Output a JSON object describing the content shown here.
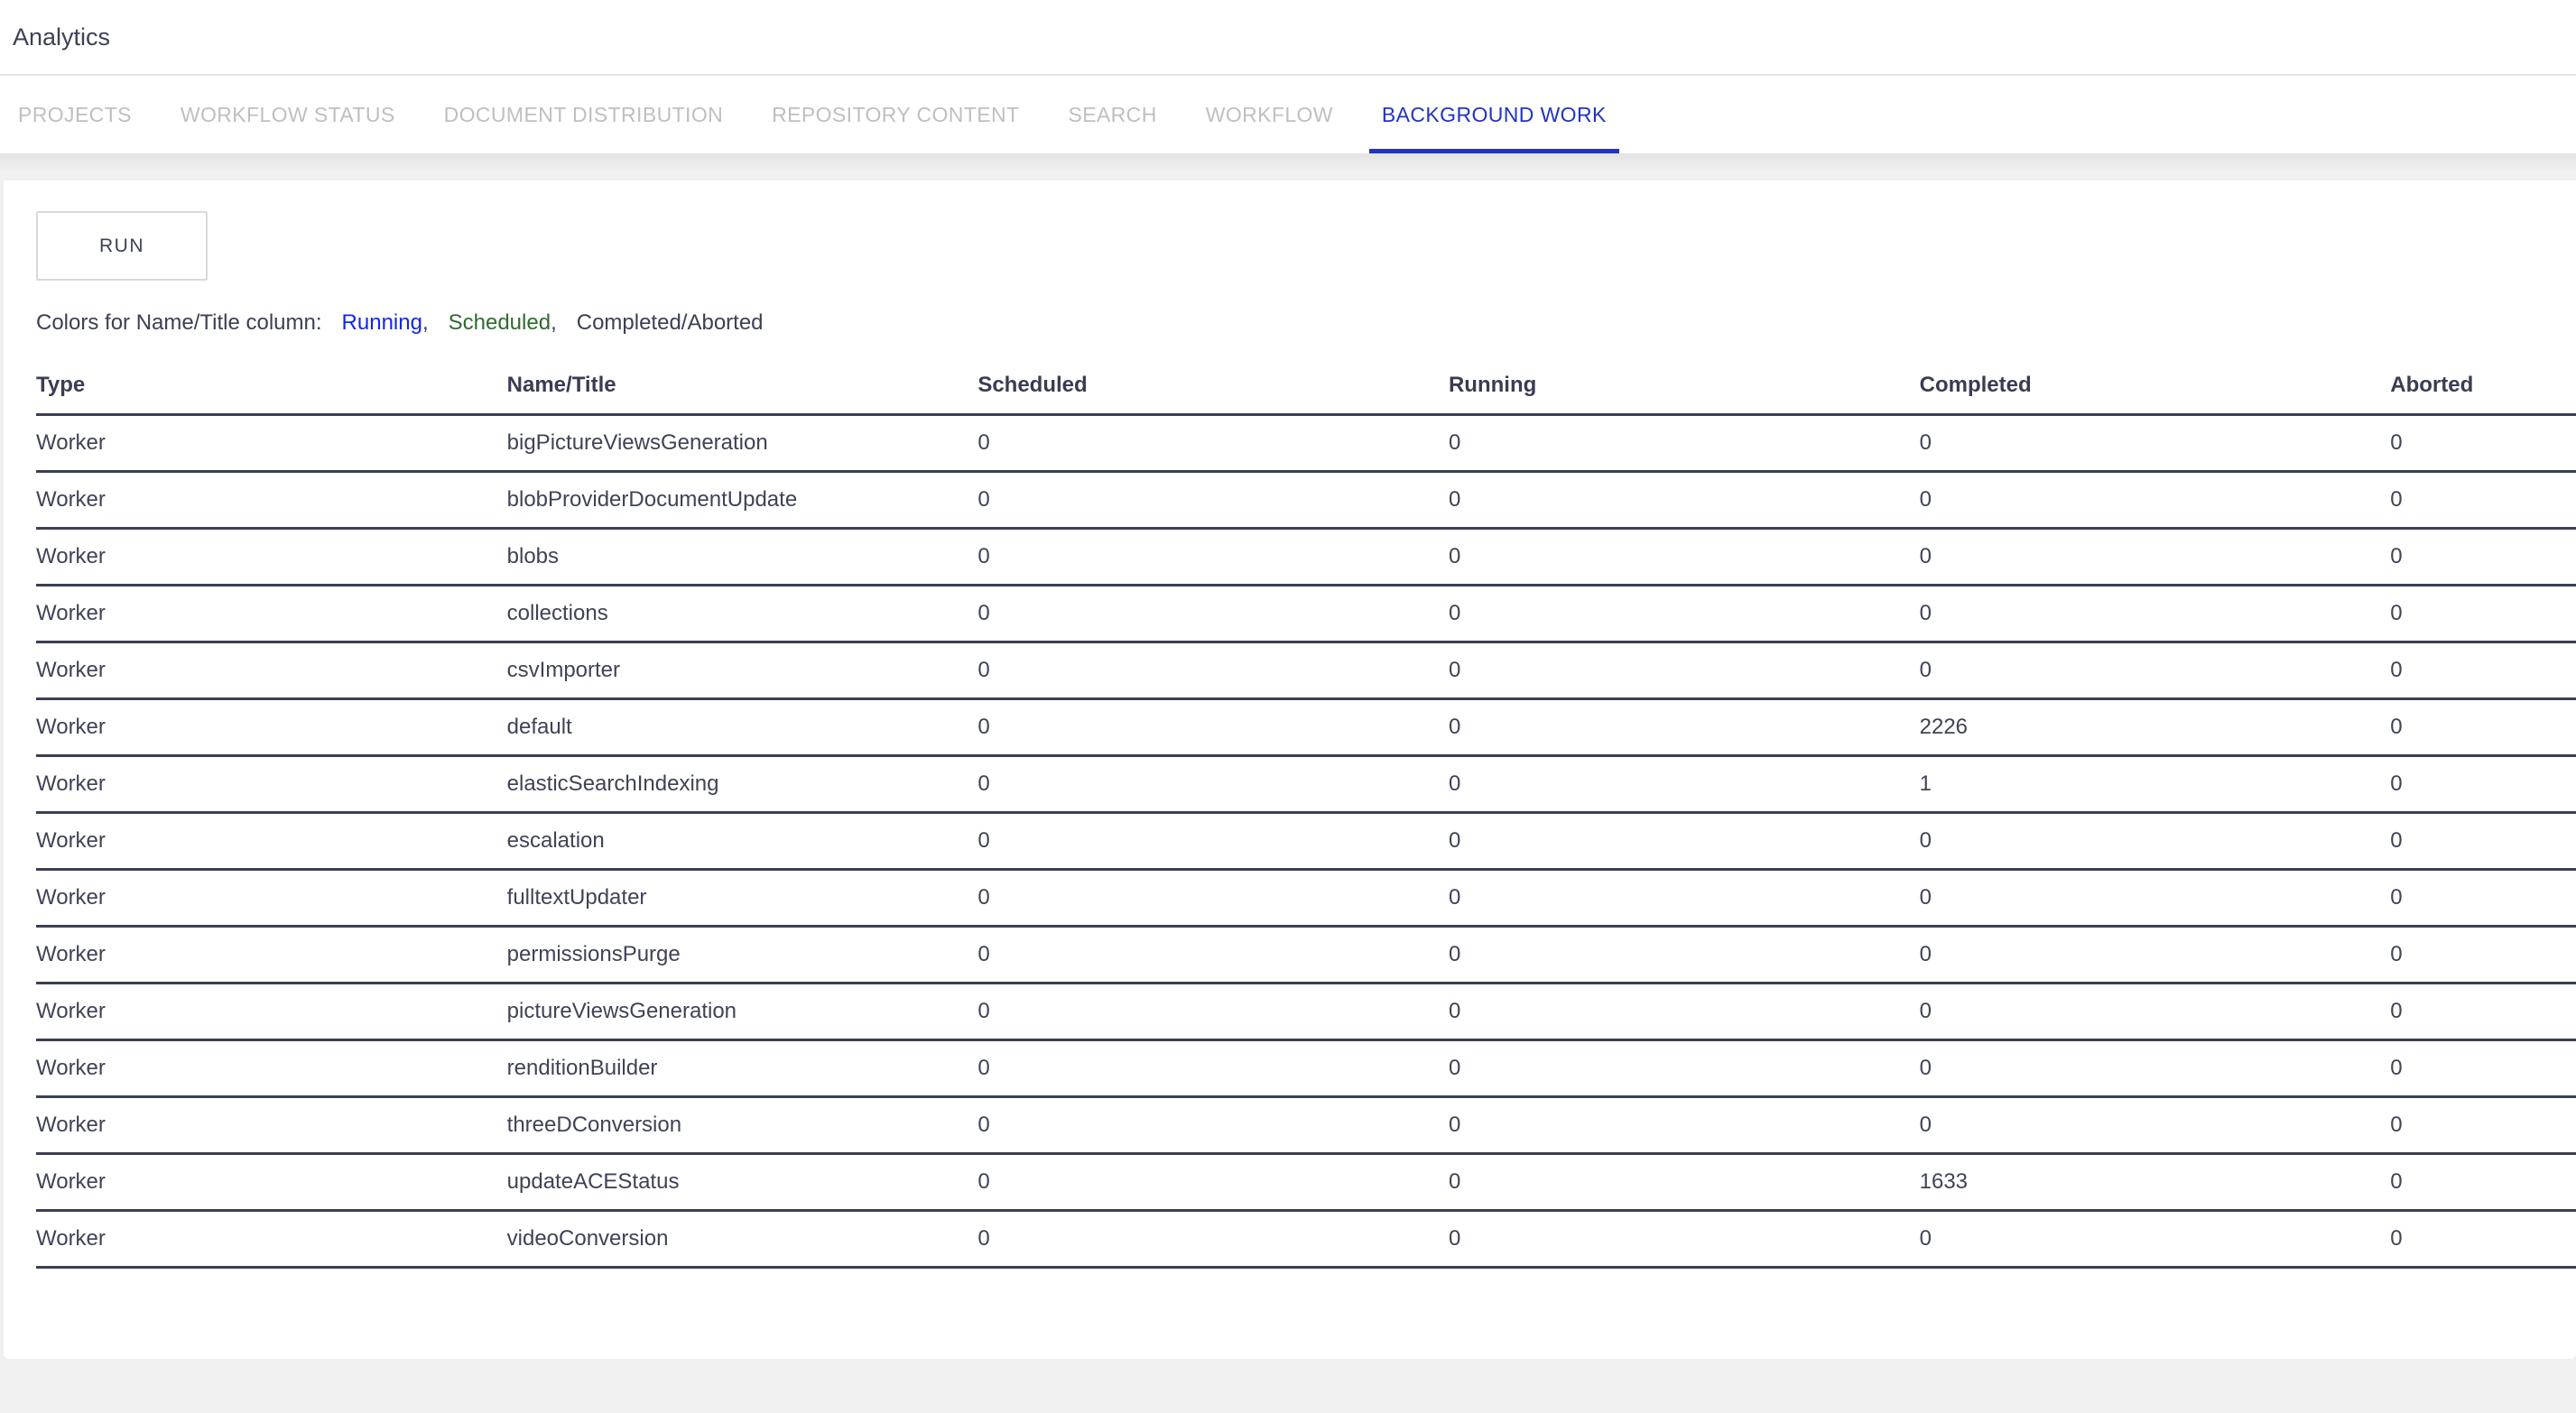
{
  "header": {
    "title": "Analytics"
  },
  "tabs": [
    {
      "label": "PROJECTS",
      "active": false
    },
    {
      "label": "WORKFLOW STATUS",
      "active": false
    },
    {
      "label": "DOCUMENT DISTRIBUTION",
      "active": false
    },
    {
      "label": "REPOSITORY CONTENT",
      "active": false
    },
    {
      "label": "SEARCH",
      "active": false
    },
    {
      "label": "WORKFLOW",
      "active": false
    },
    {
      "label": "BACKGROUND WORK",
      "active": true
    }
  ],
  "toolbar": {
    "run_label": "RUN"
  },
  "legend": {
    "label": "Colors for Name/Title column:",
    "running": "Running",
    "scheduled": "Scheduled",
    "completed_aborted": "Completed/Aborted",
    "separator": ","
  },
  "colors": {
    "active_tab_blue": "#2134c1",
    "running_blue": "#1226ee",
    "scheduled_green": "#2e6b2e",
    "text_dark": "#3b4054",
    "table_border": "#3a3f54",
    "inactive_tab_gray": "#bfbfbf",
    "page_background": "#f0f0f1"
  },
  "table": {
    "columns": [
      "Type",
      "Name/Title",
      "Scheduled",
      "Running",
      "Completed",
      "Aborted"
    ],
    "rows": [
      [
        "Worker",
        "bigPictureViewsGeneration",
        "0",
        "0",
        "0",
        "0"
      ],
      [
        "Worker",
        "blobProviderDocumentUpdate",
        "0",
        "0",
        "0",
        "0"
      ],
      [
        "Worker",
        "blobs",
        "0",
        "0",
        "0",
        "0"
      ],
      [
        "Worker",
        "collections",
        "0",
        "0",
        "0",
        "0"
      ],
      [
        "Worker",
        "csvImporter",
        "0",
        "0",
        "0",
        "0"
      ],
      [
        "Worker",
        "default",
        "0",
        "0",
        "2226",
        "0"
      ],
      [
        "Worker",
        "elasticSearchIndexing",
        "0",
        "0",
        "1",
        "0"
      ],
      [
        "Worker",
        "escalation",
        "0",
        "0",
        "0",
        "0"
      ],
      [
        "Worker",
        "fulltextUpdater",
        "0",
        "0",
        "0",
        "0"
      ],
      [
        "Worker",
        "permissionsPurge",
        "0",
        "0",
        "0",
        "0"
      ],
      [
        "Worker",
        "pictureViewsGeneration",
        "0",
        "0",
        "0",
        "0"
      ],
      [
        "Worker",
        "renditionBuilder",
        "0",
        "0",
        "0",
        "0"
      ],
      [
        "Worker",
        "threeDConversion",
        "0",
        "0",
        "0",
        "0"
      ],
      [
        "Worker",
        "updateACEStatus",
        "0",
        "0",
        "1633",
        "0"
      ],
      [
        "Worker",
        "videoConversion",
        "0",
        "0",
        "0",
        "0"
      ]
    ]
  }
}
